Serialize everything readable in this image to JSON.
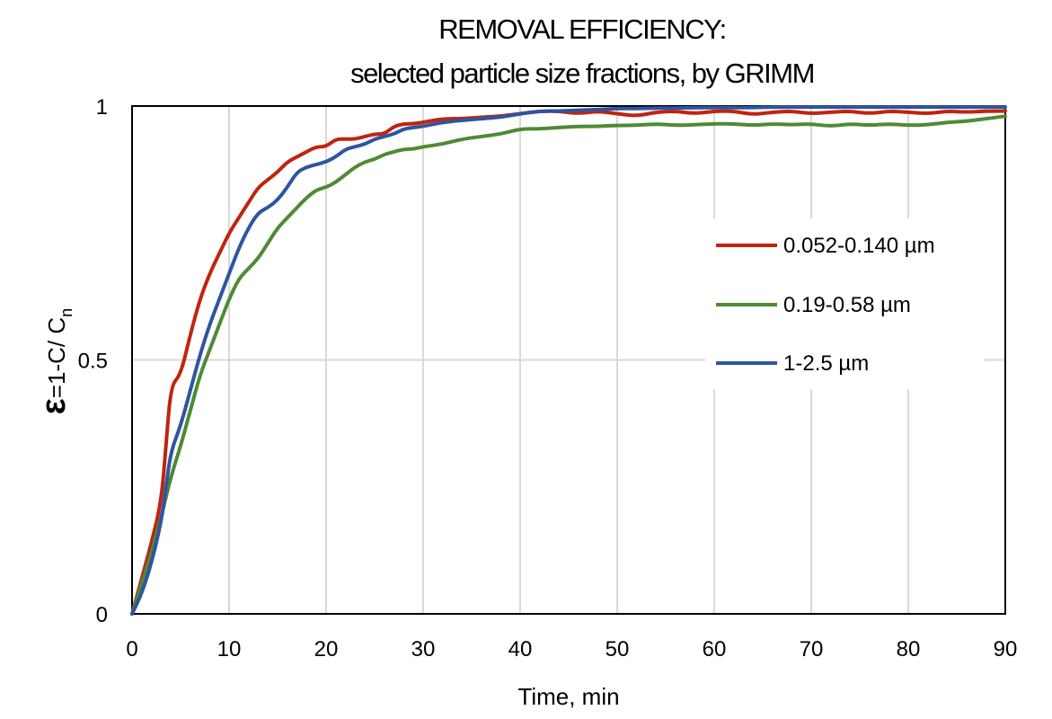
{
  "chart_data": {
    "type": "line",
    "title": "REMOVAL EFFICIENCY:",
    "subtitle": "selected particle size fractions, by GRIMM",
    "xlabel": "Time, min",
    "ylabel": {
      "symbol": "ε",
      "rest": "=1-C/ C",
      "subscript": "n"
    },
    "xlim": [
      0,
      90
    ],
    "ylim": [
      0,
      1
    ],
    "x_ticks": [
      "0",
      "10",
      "20",
      "30",
      "40",
      "50",
      "60",
      "70",
      "80",
      "90"
    ],
    "y_ticks": [
      "0",
      "0.5",
      "1"
    ],
    "grid": "vertical at each x tick, horizontal at y ticks",
    "legend_position": "right",
    "series": [
      {
        "name": "0.052-0.140 µm",
        "color": "#c0240f",
        "x": [
          0,
          1,
          2,
          3,
          3.5,
          4,
          5,
          6,
          7,
          8,
          9,
          10,
          11,
          12,
          13,
          14,
          15,
          16,
          17,
          18,
          19,
          20,
          21,
          22,
          23,
          24,
          25,
          26,
          27,
          28,
          29,
          30,
          32,
          34,
          36,
          38,
          40,
          42,
          44,
          46,
          48,
          50,
          52,
          54,
          56,
          58,
          60,
          62,
          64,
          66,
          68,
          70,
          72,
          74,
          76,
          78,
          80,
          82,
          84,
          86,
          88,
          90
        ],
        "y": [
          0,
          0.07,
          0.14,
          0.22,
          0.33,
          0.45,
          0.47,
          0.55,
          0.62,
          0.67,
          0.71,
          0.75,
          0.78,
          0.81,
          0.84,
          0.855,
          0.87,
          0.89,
          0.9,
          0.91,
          0.92,
          0.92,
          0.935,
          0.935,
          0.935,
          0.94,
          0.945,
          0.945,
          0.96,
          0.965,
          0.965,
          0.968,
          0.975,
          0.975,
          0.978,
          0.98,
          0.985,
          0.99,
          0.99,
          0.985,
          0.99,
          0.985,
          0.98,
          0.988,
          0.99,
          0.985,
          0.99,
          0.99,
          0.983,
          0.988,
          0.99,
          0.985,
          0.988,
          0.99,
          0.985,
          0.99,
          0.988,
          0.985,
          0.99,
          0.988,
          0.99,
          0.99
        ]
      },
      {
        "name": "0.19-0.58 µm",
        "color": "#4f8a34",
        "x": [
          0,
          1,
          2,
          3,
          4,
          5,
          6,
          7,
          8,
          9,
          10,
          11,
          12,
          13,
          14,
          15,
          16,
          17,
          18,
          19,
          20,
          21,
          22,
          23,
          24,
          25,
          26,
          27,
          28,
          29,
          30,
          32,
          34,
          36,
          38,
          40,
          42,
          44,
          46,
          48,
          50,
          52,
          54,
          56,
          58,
          60,
          62,
          64,
          66,
          68,
          70,
          72,
          74,
          76,
          78,
          80,
          82,
          84,
          86,
          88,
          90
        ],
        "y": [
          0,
          0.06,
          0.12,
          0.19,
          0.27,
          0.33,
          0.4,
          0.47,
          0.52,
          0.57,
          0.62,
          0.66,
          0.68,
          0.7,
          0.73,
          0.76,
          0.78,
          0.8,
          0.82,
          0.835,
          0.84,
          0.85,
          0.865,
          0.88,
          0.89,
          0.895,
          0.905,
          0.91,
          0.915,
          0.915,
          0.92,
          0.925,
          0.935,
          0.94,
          0.945,
          0.955,
          0.955,
          0.958,
          0.96,
          0.96,
          0.962,
          0.962,
          0.965,
          0.962,
          0.963,
          0.965,
          0.965,
          0.962,
          0.965,
          0.963,
          0.965,
          0.96,
          0.965,
          0.962,
          0.965,
          0.962,
          0.963,
          0.968,
          0.97,
          0.975,
          0.98
        ]
      },
      {
        "name": "1-2.5 µm",
        "color": "#2f54a0",
        "x": [
          0,
          1,
          2,
          3,
          3.5,
          4,
          5,
          6,
          7,
          8,
          9,
          10,
          11,
          12,
          13,
          14,
          15,
          16,
          17,
          18,
          19,
          20,
          21,
          22,
          23,
          24,
          25,
          26,
          27,
          28,
          29,
          30,
          32,
          34,
          36,
          38,
          40,
          42,
          44,
          46,
          48,
          50,
          52,
          54,
          56,
          58,
          60,
          62,
          64,
          66,
          68,
          70,
          72,
          74,
          76,
          78,
          80,
          82,
          84,
          86,
          88,
          90
        ],
        "y": [
          0,
          0.04,
          0.1,
          0.18,
          0.25,
          0.32,
          0.37,
          0.44,
          0.51,
          0.57,
          0.62,
          0.67,
          0.72,
          0.76,
          0.79,
          0.8,
          0.815,
          0.84,
          0.87,
          0.88,
          0.885,
          0.89,
          0.9,
          0.915,
          0.92,
          0.925,
          0.935,
          0.94,
          0.945,
          0.955,
          0.958,
          0.96,
          0.968,
          0.972,
          0.975,
          0.978,
          0.985,
          0.99,
          0.99,
          0.992,
          0.993,
          0.995,
          0.995,
          0.996,
          0.996,
          0.997,
          0.997,
          0.997,
          0.997,
          0.998,
          0.998,
          0.998,
          0.998,
          0.998,
          0.998,
          0.998,
          0.998,
          0.998,
          0.998,
          0.998,
          0.998,
          0.998
        ]
      }
    ]
  }
}
